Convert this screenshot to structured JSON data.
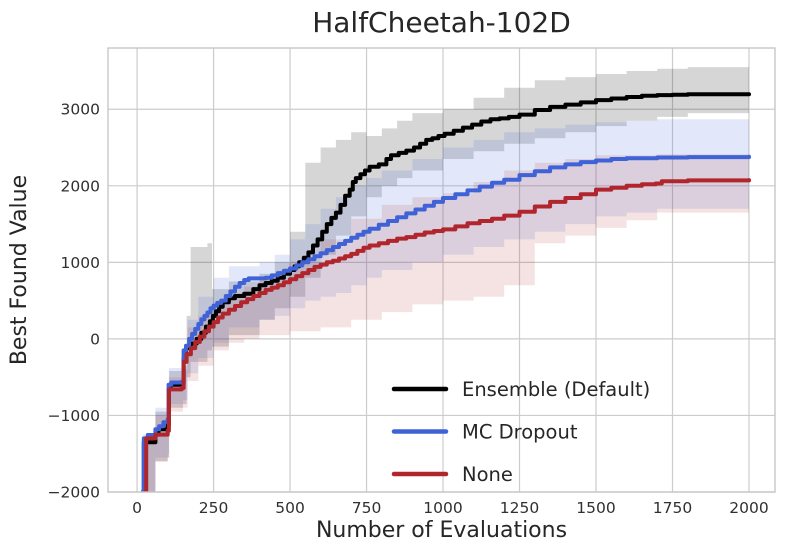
{
  "chart_data": {
    "type": "line",
    "title": "HalfCheetah-102D",
    "xlabel": "Number of Evaluations",
    "ylabel": "Best Found Value",
    "xlim": [
      -95,
      2085
    ],
    "ylim": [
      -2000,
      3800
    ],
    "xticks": [
      0,
      250,
      500,
      750,
      1000,
      1250,
      1500,
      1750,
      2000
    ],
    "yticks": [
      -2000,
      -1000,
      0,
      1000,
      2000,
      3000
    ],
    "grid": true,
    "grid_color": "#cccccc",
    "spine_color": "#c8c8c8",
    "text_color": "#262626",
    "tick_color": "#303030",
    "legend_position": "lower right",
    "series": [
      {
        "name": "Ensemble (Default)",
        "color": "#000000",
        "band_alpha": 0.16,
        "x": [
          20,
          22,
          60,
          70,
          100,
          104,
          110,
          148,
          152,
          160,
          175,
          195,
          210,
          225,
          238,
          248,
          258,
          268,
          280,
          300,
          320,
          350,
          380,
          400,
          420,
          440,
          460,
          480,
          500,
          515,
          530,
          545,
          560,
          575,
          590,
          605,
          620,
          635,
          650,
          665,
          680,
          695,
          705,
          715,
          730,
          745,
          760,
          790,
          815,
          830,
          855,
          880,
          905,
          925,
          945,
          965,
          985,
          1005,
          1035,
          1065,
          1095,
          1125,
          1155,
          1185,
          1215,
          1250,
          1300,
          1350,
          1400,
          1450,
          1500,
          1550,
          1600,
          1650,
          1700,
          1750,
          1800,
          1900,
          2000
        ],
        "y": [
          -1990,
          -1350,
          -1250,
          -1180,
          -1120,
          -640,
          -600,
          -580,
          -250,
          -120,
          -60,
          0,
          80,
          160,
          230,
          300,
          360,
          420,
          480,
          530,
          560,
          590,
          650,
          700,
          730,
          760,
          800,
          850,
          900,
          950,
          1000,
          1060,
          1130,
          1220,
          1300,
          1400,
          1500,
          1580,
          1650,
          1750,
          1870,
          1950,
          2050,
          2100,
          2150,
          2200,
          2250,
          2280,
          2350,
          2400,
          2430,
          2460,
          2500,
          2550,
          2600,
          2620,
          2650,
          2680,
          2720,
          2760,
          2800,
          2840,
          2870,
          2880,
          2900,
          2930,
          2990,
          3030,
          3060,
          3090,
          3120,
          3140,
          3160,
          3175,
          3185,
          3190,
          3195,
          3195,
          3195
        ],
        "band": {
          "x": [
            20,
            60,
            100,
            105,
            150,
            162,
            175,
            230,
            245,
            300,
            400,
            450,
            500,
            550,
            600,
            650,
            700,
            750,
            800,
            850,
            900,
            1000,
            1100,
            1200,
            1300,
            1400,
            1500,
            1600,
            1700,
            1800,
            2000
          ],
          "lo": [
            -2000,
            -1600,
            -1550,
            -900,
            -850,
            -500,
            -300,
            -150,
            -100,
            50,
            250,
            400,
            550,
            800,
            1100,
            1350,
            1600,
            1850,
            2000,
            2100,
            2200,
            2350,
            2450,
            2550,
            2620,
            2700,
            2780,
            2850,
            2900,
            2950,
            3000
          ],
          "hi": [
            -1300,
            -950,
            -900,
            -420,
            -350,
            300,
            1200,
            1250,
            650,
            750,
            850,
            1000,
            1400,
            2300,
            2500,
            2600,
            2700,
            2650,
            2750,
            2850,
            2950,
            3000,
            3150,
            3280,
            3380,
            3420,
            3460,
            3500,
            3530,
            3550,
            3560
          ]
        }
      },
      {
        "name": "MC Dropout",
        "color": "#3f62d6",
        "band_alpha": 0.15,
        "x": [
          20,
          22,
          35,
          60,
          72,
          86,
          100,
          103,
          112,
          146,
          152,
          160,
          170,
          180,
          190,
          200,
          210,
          220,
          230,
          240,
          250,
          262,
          275,
          290,
          305,
          320,
          335,
          350,
          365,
          420,
          440,
          460,
          480,
          500,
          520,
          540,
          560,
          580,
          600,
          620,
          640,
          660,
          680,
          700,
          720,
          740,
          760,
          790,
          820,
          850,
          880,
          910,
          940,
          970,
          1000,
          1040,
          1080,
          1120,
          1160,
          1200,
          1250,
          1300,
          1350,
          1400,
          1450,
          1500,
          1550,
          1600,
          1700,
          1800,
          2000
        ],
        "y": [
          -1990,
          -1300,
          -1255,
          -1180,
          -1140,
          -1090,
          -1050,
          -600,
          -570,
          -560,
          -150,
          -90,
          0,
          65,
          130,
          195,
          255,
          300,
          345,
          400,
          435,
          470,
          500,
          560,
          620,
          680,
          730,
          770,
          790,
          800,
          830,
          860,
          890,
          920,
          960,
          1000,
          1040,
          1080,
          1120,
          1160,
          1200,
          1240,
          1280,
          1320,
          1360,
          1400,
          1440,
          1490,
          1540,
          1590,
          1640,
          1690,
          1740,
          1790,
          1840,
          1890,
          1940,
          1990,
          2040,
          2080,
          2140,
          2190,
          2240,
          2280,
          2310,
          2330,
          2350,
          2360,
          2370,
          2375,
          2380
        ],
        "band": {
          "x": [
            20,
            60,
            100,
            104,
            150,
            165,
            200,
            250,
            300,
            400,
            450,
            500,
            550,
            600,
            650,
            700,
            750,
            800,
            900,
            1000,
            1100,
            1200,
            1300,
            1400,
            1500,
            1600,
            1700,
            2000
          ],
          "lo": [
            -2000,
            -1550,
            -1500,
            -850,
            -800,
            -450,
            -250,
            -50,
            150,
            250,
            300,
            400,
            500,
            550,
            600,
            700,
            800,
            900,
            1000,
            1100,
            1200,
            1300,
            1400,
            1500,
            1600,
            1650,
            1700,
            1760
          ],
          "hi": [
            -1250,
            -900,
            -850,
            -380,
            -300,
            250,
            550,
            800,
            950,
            1000,
            1100,
            1300,
            1500,
            1700,
            1850,
            2000,
            2100,
            2200,
            2350,
            2500,
            2600,
            2700,
            2750,
            2800,
            2830,
            2850,
            2870,
            2880
          ]
        }
      },
      {
        "name": "None",
        "color": "#b0262c",
        "band_alpha": 0.13,
        "x": [
          28,
          30,
          60,
          100,
          104,
          146,
          152,
          162,
          176,
          190,
          205,
          220,
          235,
          250,
          265,
          280,
          300,
          320,
          340,
          360,
          380,
          400,
          420,
          440,
          460,
          480,
          500,
          520,
          540,
          560,
          580,
          600,
          620,
          640,
          660,
          680,
          700,
          720,
          740,
          760,
          790,
          820,
          850,
          880,
          910,
          940,
          970,
          1000,
          1040,
          1080,
          1120,
          1160,
          1200,
          1250,
          1300,
          1350,
          1400,
          1450,
          1500,
          1550,
          1600,
          1650,
          1695,
          1715,
          1800,
          2000
        ],
        "y": [
          -1990,
          -1300,
          -1250,
          -1200,
          -660,
          -640,
          -300,
          -200,
          -120,
          -40,
          30,
          100,
          160,
          220,
          280,
          330,
          380,
          430,
          480,
          520,
          560,
          600,
          640,
          670,
          700,
          740,
          780,
          820,
          860,
          900,
          940,
          970,
          1000,
          1020,
          1050,
          1080,
          1110,
          1150,
          1190,
          1220,
          1250,
          1280,
          1310,
          1330,
          1360,
          1390,
          1410,
          1430,
          1470,
          1510,
          1540,
          1570,
          1610,
          1660,
          1730,
          1790,
          1840,
          1890,
          1950,
          1975,
          2000,
          2020,
          2030,
          2060,
          2070,
          2075
        ],
        "band": {
          "x": [
            28,
            60,
            100,
            104,
            150,
            165,
            200,
            250,
            300,
            350,
            400,
            500,
            600,
            700,
            800,
            900,
            1000,
            1100,
            1200,
            1300,
            1400,
            1500,
            1600,
            1700,
            2000
          ],
          "lo": [
            -2000,
            -1600,
            -1550,
            -950,
            -900,
            -550,
            -350,
            -150,
            -50,
            0,
            50,
            100,
            150,
            250,
            350,
            450,
            500,
            550,
            700,
            1250,
            1350,
            1450,
            1550,
            1650,
            1670
          ],
          "hi": [
            -1300,
            -1000,
            -950,
            -500,
            -400,
            150,
            300,
            450,
            600,
            680,
            800,
            1000,
            1300,
            1570,
            1750,
            1850,
            1900,
            2050,
            2200,
            2300,
            2350,
            2400,
            2400,
            2410,
            2410
          ]
        }
      }
    ]
  }
}
